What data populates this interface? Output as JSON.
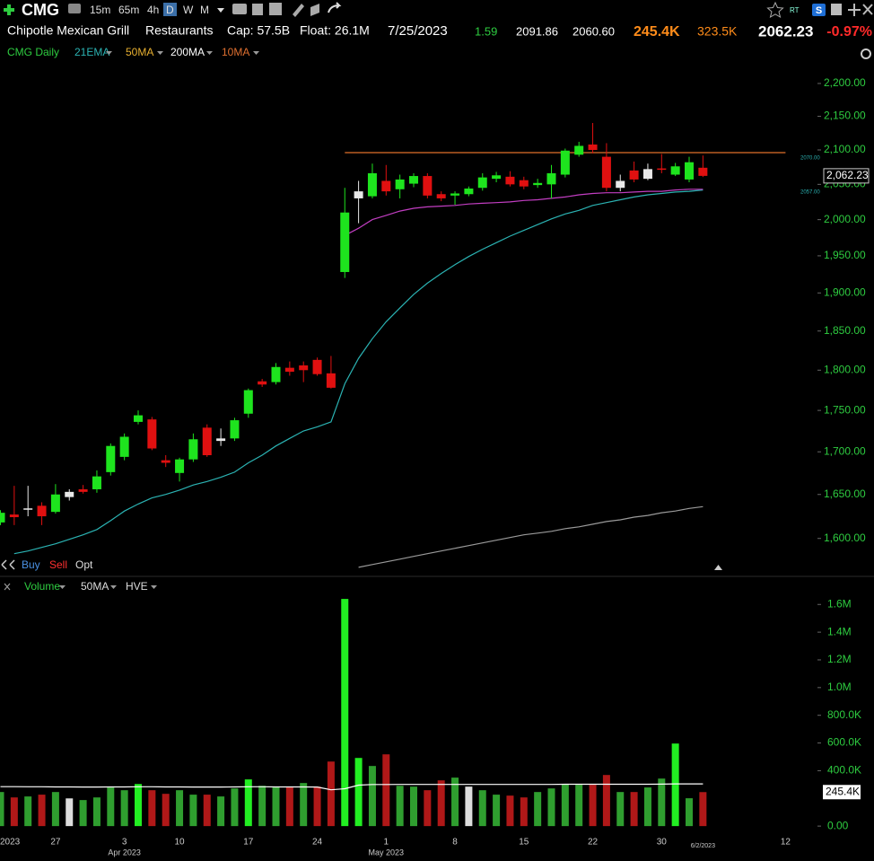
{
  "header": {
    "symbol": "CMG",
    "timeframes": [
      "15m",
      "65m",
      "4h",
      "D",
      "W",
      "M"
    ],
    "active_timeframe": "D",
    "rt": "RT",
    "s_badge": "S",
    "company": "Chipotle Mexican Grill",
    "industry": "Restaurants",
    "cap": "Cap: 57.5B",
    "float": "Float: 26.1M",
    "date": "7/25/2023",
    "change": "1.59",
    "high": "2091.86",
    "low": "2060.60",
    "volume": "245.4K",
    "avg_volume": "323.5K",
    "last": "2062.23",
    "change_pct": "-0.97%",
    "trade_buttons": [
      "Buy",
      "Sell",
      "Opt"
    ]
  },
  "chart_data": [
    {
      "type": "candlestick",
      "title": "CMG Daily",
      "legend": [
        {
          "name": "21EMA",
          "color": "#2bb3b3"
        },
        {
          "name": "50MA",
          "color": "#e8b030"
        },
        {
          "name": "200MA",
          "color": "#ffffff"
        },
        {
          "name": "10MA",
          "color": "#e07030"
        }
      ],
      "open": [
        1618,
        1627,
        1633,
        1637,
        1630,
        1647,
        1656,
        1656,
        1676,
        1694,
        1736,
        1739,
        1690,
        1675,
        1691,
        1729,
        1713,
        1716,
        1746,
        1786,
        1785,
        1803,
        1806,
        1813,
        1796,
        1928,
        2030,
        2033,
        2055,
        2043,
        2051,
        2062,
        2036,
        2034,
        2036,
        2045,
        2058,
        2061,
        2056,
        2049,
        2050,
        2064,
        2093,
        2108,
        2090,
        2045,
        2070,
        2058,
        2073,
        2064,
        2057,
        2074,
        null,
        null,
        null,
        null,
        null,
        null
      ],
      "high": [
        1632,
        1660,
        1660,
        1641,
        1662,
        1656,
        1661,
        1678,
        1710,
        1722,
        1750,
        1742,
        1696,
        1693,
        1722,
        1733,
        1728,
        1741,
        1777,
        1789,
        1809,
        1811,
        1811,
        1816,
        1818,
        2045,
        2055,
        2080,
        2078,
        2064,
        2066,
        2066,
        2040,
        2040,
        2047,
        2066,
        2068,
        2069,
        2061,
        2058,
        2078,
        2102,
        2112,
        2140,
        2110,
        2064,
        2083,
        2080,
        2094,
        2081,
        2090,
        2091.86,
        null,
        null,
        null,
        null,
        null,
        null
      ],
      "low": [
        1615,
        1615,
        1625,
        1615,
        1628,
        1643,
        1651,
        1652,
        1672,
        1690,
        1733,
        1702,
        1682,
        1665,
        1688,
        1694,
        1707,
        1713,
        1741,
        1779,
        1782,
        1793,
        1785,
        1793,
        1777,
        1920,
        1995,
        2030,
        2034,
        2030,
        2046,
        2030,
        2026,
        2021,
        2033,
        2041,
        2053,
        2047,
        2043,
        2045,
        2030,
        2060,
        2090,
        2095,
        2040,
        2040,
        2053,
        2056,
        2066,
        2062,
        2053,
        2060.6,
        null,
        null,
        null,
        null,
        null,
        null
      ],
      "close": [
        1629,
        1624,
        1634,
        1625,
        1650,
        1653,
        1653,
        1671,
        1707,
        1718,
        1744,
        1704,
        1687,
        1691,
        1715,
        1696,
        1716,
        1738,
        1775,
        1782,
        1804,
        1798,
        1800,
        1795,
        1778,
        2010,
        2040,
        2066,
        2040,
        2057,
        2062,
        2034,
        2030,
        2037,
        2044,
        2060,
        2063,
        2050,
        2047,
        2052,
        2066,
        2099,
        2106,
        2100,
        2045,
        2055,
        2057,
        2072,
        2071,
        2076,
        2082,
        2062.23,
        null,
        null,
        null,
        null,
        null,
        null
      ],
      "candle_colors": [
        "#1ee41e",
        "#e01010",
        "#e8e8e8",
        "#e01010",
        "#1ee41e",
        "#e8e8e8",
        "#e01010",
        "#1ee41e",
        "#1ee41e",
        "#1ee41e",
        "#1ee41e",
        "#e01010",
        "#e01010",
        "#1ee41e",
        "#1ee41e",
        "#e01010",
        "#e8e8e8",
        "#1ee41e",
        "#1ee41e",
        "#e01010",
        "#1ee41e",
        "#e01010",
        "#e01010",
        "#e01010",
        "#e01010",
        "#1ee41e",
        "#e8e8e8",
        "#1ee41e",
        "#e01010",
        "#1ee41e",
        "#1ee41e",
        "#e01010",
        "#e01010",
        "#1ee41e",
        "#1ee41e",
        "#1ee41e",
        "#1ee41e",
        "#e01010",
        "#e01010",
        "#1ee41e",
        "#1ee41e",
        "#1ee41e",
        "#1ee41e",
        "#e01010",
        "#e01010",
        "#e8e8e8",
        "#e01010",
        "#e8e8e8",
        "#e01010",
        "#1ee41e",
        "#1ee41e",
        "#e01010",
        null,
        null,
        null,
        null,
        null,
        null
      ],
      "lines": [
        {
          "name": "21EMA",
          "color": "#2bb3b3",
          "values": [
            null,
            1583,
            1586,
            1590,
            1594,
            1599,
            1604,
            1610,
            1620,
            1631,
            1639,
            1646,
            1650,
            1655,
            1661,
            1665,
            1670,
            1676,
            1687,
            1696,
            1707,
            1716,
            1725,
            1730,
            1736,
            1783,
            1815,
            1840,
            1862,
            1880,
            1898,
            1913,
            1926,
            1938,
            1949,
            1959,
            1968,
            1977,
            1985,
            1993,
            2001,
            2008,
            2013,
            2020,
            2024,
            2028,
            2032,
            2035,
            2037,
            2039,
            2040,
            2042,
            null,
            null,
            null,
            null,
            null,
            null
          ]
        },
        {
          "color": "#c23ec2",
          "values": [
            null,
            null,
            null,
            null,
            null,
            null,
            null,
            null,
            null,
            null,
            null,
            null,
            null,
            null,
            null,
            null,
            null,
            null,
            null,
            null,
            null,
            null,
            null,
            null,
            null,
            1978,
            1988,
            2000,
            2006,
            2012,
            2016,
            2018,
            2019,
            2020,
            2022,
            2023,
            2024,
            2025,
            2027,
            2028,
            2030,
            2032,
            2035,
            2037,
            2038,
            2038,
            2039,
            2040,
            2040,
            2042,
            2043,
            2043,
            null,
            null,
            null,
            null,
            null,
            null
          ]
        },
        {
          "name": "200MA",
          "color": "#9a9a9a",
          "values": [
            null,
            null,
            null,
            null,
            null,
            null,
            null,
            null,
            null,
            null,
            null,
            null,
            null,
            null,
            null,
            null,
            null,
            null,
            null,
            null,
            null,
            null,
            null,
            null,
            null,
            null,
            1568,
            1571,
            1574,
            1577,
            1580,
            1583,
            1586,
            1589,
            1592,
            1595,
            1598,
            1601,
            1604,
            1606,
            1608,
            1611,
            1613,
            1616,
            1619,
            1621,
            1624,
            1626,
            1629,
            1631,
            1634,
            1636,
            null,
            null,
            null,
            null,
            null,
            null
          ]
        },
        {
          "color": "#e0702a",
          "values": [
            null,
            null,
            null,
            null,
            null,
            null,
            null,
            null,
            null,
            null,
            null,
            null,
            null,
            null,
            null,
            null,
            null,
            null,
            null,
            null,
            null,
            null,
            null,
            null,
            null,
            2096,
            2096,
            2096,
            2096,
            2096,
            2096,
            2096,
            2096,
            2096,
            2096,
            2096,
            2096,
            2096,
            2096,
            2096,
            2096,
            2096,
            2096,
            2096,
            2096,
            2096,
            2096,
            2096,
            2096,
            2096,
            2096,
            2096,
            2096,
            2096,
            2096,
            2096,
            2096,
            2096
          ]
        }
      ],
      "log_scale": true,
      "ylim": [
        1560,
        2232
      ],
      "yticks": [
        {
          "value": 1600,
          "label": "1,600.00"
        },
        {
          "value": 1650,
          "label": "1,650.00"
        },
        {
          "value": 1700,
          "label": "1,700.00"
        },
        {
          "value": 1750,
          "label": "1,750.00"
        },
        {
          "value": 1800,
          "label": "1,800.00"
        },
        {
          "value": 1850,
          "label": "1,850.00"
        },
        {
          "value": 1900,
          "label": "1,900.00"
        },
        {
          "value": 1950,
          "label": "1,950.00"
        },
        {
          "value": 2000,
          "label": "2,000.00"
        },
        {
          "value": 2050,
          "label": "2,050.00"
        },
        {
          "value": 2100,
          "label": "2,100.00"
        },
        {
          "value": 2150,
          "label": "2,150.00"
        },
        {
          "value": 2200,
          "label": "2,200.00"
        }
      ],
      "price_labels": [
        {
          "value": 2070,
          "label": "2070.00"
        },
        {
          "value": 2062.23,
          "label": "2,062.23"
        },
        {
          "value": 2057,
          "label": "2057.00"
        }
      ]
    },
    {
      "type": "bar",
      "title": "Volume",
      "legend": [
        {
          "name": "50MA"
        },
        {
          "name": "HVE"
        }
      ],
      "categories": [
        "2023",
        null,
        null,
        null,
        "27",
        null,
        null,
        null,
        null,
        "3",
        null,
        null,
        null,
        "10",
        null,
        null,
        null,
        null,
        "17",
        null,
        null,
        null,
        null,
        "24",
        null,
        null,
        null,
        null,
        "1",
        null,
        null,
        null,
        null,
        "8",
        null,
        null,
        null,
        null,
        "15",
        null,
        null,
        null,
        null,
        "22",
        null,
        null,
        null,
        null,
        "30",
        null,
        null,
        "6/2/2023",
        null,
        null,
        null,
        null,
        null,
        "12"
      ],
      "category_sublabels": [
        null,
        null,
        null,
        null,
        null,
        null,
        null,
        null,
        null,
        "Apr 2023",
        null,
        null,
        null,
        null,
        null,
        null,
        null,
        null,
        null,
        null,
        null,
        null,
        null,
        null,
        null,
        null,
        null,
        null,
        "May 2023",
        null,
        null,
        null,
        null,
        null,
        null,
        null,
        null,
        null,
        null,
        null,
        null,
        null,
        null,
        null,
        null,
        null,
        null,
        null,
        null,
        null,
        null,
        null,
        null,
        null,
        null,
        null,
        null,
        null
      ],
      "values": [
        246000,
        207000,
        214000,
        227000,
        246000,
        200000,
        188000,
        207000,
        279000,
        259000,
        304000,
        259000,
        233000,
        259000,
        227000,
        227000,
        214000,
        272000,
        337000,
        291000,
        285000,
        285000,
        311000,
        285000,
        466000,
        1640000,
        492000,
        434000,
        518000,
        291000,
        285000,
        259000,
        330000,
        350000,
        285000,
        259000,
        227000,
        220000,
        207000,
        246000,
        272000,
        304000,
        298000,
        298000,
        369000,
        246000,
        246000,
        279000,
        343000,
        596000,
        201000,
        245400,
        null,
        null,
        null,
        null,
        null,
        null
      ],
      "colors": [
        "#2f9e2f",
        "#b01818",
        "#2f9e2f",
        "#b01818",
        "#2f9e2f",
        "#dddddd",
        "#2f9e2f",
        "#2f9e2f",
        "#2f9e2f",
        "#2f9e2f",
        "#22ee22",
        "#b01818",
        "#b01818",
        "#2f9e2f",
        "#2f9e2f",
        "#b01818",
        "#2f9e2f",
        "#2f9e2f",
        "#22ee22",
        "#2f9e2f",
        "#2f9e2f",
        "#b01818",
        "#2f9e2f",
        "#b01818",
        "#b01818",
        "#22ee22",
        "#22ee22",
        "#2f9e2f",
        "#b01818",
        "#2f9e2f",
        "#2f9e2f",
        "#b01818",
        "#b01818",
        "#2f9e2f",
        "#dddddd",
        "#2f9e2f",
        "#2f9e2f",
        "#b01818",
        "#b01818",
        "#2f9e2f",
        "#2f9e2f",
        "#2f9e2f",
        "#2f9e2f",
        "#b01818",
        "#b01818",
        "#2f9e2f",
        "#b01818",
        "#2f9e2f",
        "#2f9e2f",
        "#22ee22",
        "#2f9e2f",
        "#b01818",
        null,
        null,
        null,
        null,
        null,
        null
      ],
      "lines": [
        {
          "name": "50MA",
          "color": "#ffffff",
          "values": [
            285000,
            285000,
            284000,
            284000,
            283000,
            283000,
            282000,
            282000,
            283000,
            283000,
            284000,
            284000,
            283000,
            283000,
            282000,
            282000,
            282000,
            283000,
            284000,
            284000,
            283000,
            283000,
            283000,
            282000,
            262000,
            270000,
            296000,
            300000,
            300000,
            301000,
            301000,
            301000,
            301000,
            301000,
            301000,
            301000,
            301000,
            301000,
            301000,
            301000,
            301000,
            302000,
            302000,
            302000,
            302000,
            302000,
            302000,
            302000,
            303000,
            305000,
            305000,
            305000,
            null,
            null,
            null,
            null,
            null,
            null
          ]
        }
      ],
      "ylim": [
        -64000,
        1660000
      ],
      "yticks": [
        {
          "value": 0,
          "label": "0.00"
        },
        {
          "value": 400000,
          "label": "400.0K"
        },
        {
          "value": 600000,
          "label": "600.0K"
        },
        {
          "value": 800000,
          "label": "800.0K"
        },
        {
          "value": 1000000,
          "label": "1.0M"
        },
        {
          "value": 1200000,
          "label": "1.2M"
        },
        {
          "value": 1400000,
          "label": "1.4M"
        },
        {
          "value": 1600000,
          "label": "1.6M"
        }
      ],
      "last_label": {
        "value": 245400,
        "label": "245.4K"
      }
    }
  ]
}
